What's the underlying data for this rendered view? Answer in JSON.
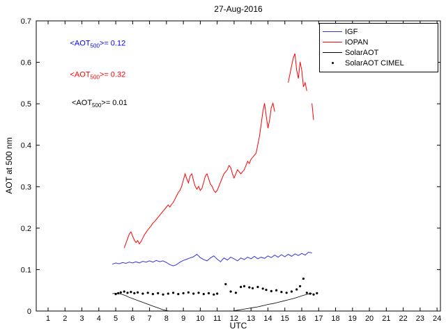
{
  "chart_data": {
    "type": "line",
    "title": "27-Aug-2016",
    "xlabel": "UTC",
    "ylabel": "AOT at 500 nm",
    "xlim": [
      0.3,
      24.2
    ],
    "ylim": [
      0,
      0.7
    ],
    "grid": false,
    "legend_position": "top-right",
    "xticks": [
      1,
      2,
      3,
      4,
      5,
      6,
      7,
      8,
      9,
      10,
      11,
      12,
      13,
      14,
      15,
      16,
      17,
      18,
      19,
      20,
      21,
      22,
      23,
      24
    ],
    "yticks": [
      0,
      0.1,
      0.2,
      0.3,
      0.4,
      0.5,
      0.6,
      0.7
    ],
    "ytick_labels": [
      "0",
      "0.1",
      "0.2",
      "0.3",
      "0.4",
      "0.5",
      "0.6",
      "0.7"
    ],
    "series": [
      {
        "name": "IGF",
        "type": "line",
        "color": "#3333dd",
        "width": 1,
        "segments": [
          [
            [
              4.8,
              0.113
            ],
            [
              5,
              0.116
            ],
            [
              5.2,
              0.114
            ],
            [
              5.4,
              0.117
            ],
            [
              5.6,
              0.115
            ],
            [
              5.8,
              0.118
            ],
            [
              6,
              0.116
            ],
            [
              6.2,
              0.119
            ],
            [
              6.4,
              0.116
            ],
            [
              6.6,
              0.12
            ],
            [
              6.8,
              0.118
            ],
            [
              7,
              0.121
            ],
            [
              7.2,
              0.118
            ],
            [
              7.4,
              0.122
            ],
            [
              7.6,
              0.119
            ],
            [
              7.8,
              0.121
            ],
            [
              8,
              0.117
            ],
            [
              8.2,
              0.112
            ],
            [
              8.4,
              0.109
            ],
            [
              8.6,
              0.112
            ],
            [
              8.8,
              0.118
            ],
            [
              9,
              0.122
            ],
            [
              9.2,
              0.125
            ],
            [
              9.4,
              0.128
            ],
            [
              9.6,
              0.131
            ],
            [
              9.8,
              0.137
            ],
            [
              10,
              0.129
            ],
            [
              10.2,
              0.124
            ],
            [
              10.4,
              0.121
            ],
            [
              10.6,
              0.128
            ],
            [
              10.8,
              0.133
            ],
            [
              11,
              0.125
            ],
            [
              11.2,
              0.119
            ],
            [
              11.4,
              0.128
            ],
            [
              11.6,
              0.123
            ],
            [
              11.8,
              0.13
            ],
            [
              12,
              0.126
            ],
            [
              12.2,
              0.121
            ],
            [
              12.4,
              0.128
            ],
            [
              12.6,
              0.124
            ],
            [
              12.8,
              0.13
            ],
            [
              13,
              0.126
            ],
            [
              13.2,
              0.132
            ],
            [
              13.4,
              0.126
            ],
            [
              13.6,
              0.13
            ],
            [
              13.8,
              0.127
            ],
            [
              14,
              0.133
            ],
            [
              14.2,
              0.129
            ],
            [
              14.4,
              0.135
            ],
            [
              14.6,
              0.13
            ],
            [
              14.8,
              0.136
            ],
            [
              15,
              0.131
            ],
            [
              15.2,
              0.137
            ],
            [
              15.4,
              0.132
            ],
            [
              15.6,
              0.138
            ],
            [
              15.8,
              0.134
            ],
            [
              16,
              0.139
            ],
            [
              16.2,
              0.135
            ],
            [
              16.4,
              0.142
            ],
            [
              16.6,
              0.14
            ]
          ]
        ]
      },
      {
        "name": "IOPAN",
        "type": "line",
        "color": "#ff0000",
        "width": 1,
        "segments": [
          [
            [
              5.5,
              0.152
            ],
            [
              5.6,
              0.163
            ],
            [
              5.7,
              0.174
            ],
            [
              5.8,
              0.186
            ],
            [
              5.9,
              0.191
            ],
            [
              6,
              0.181
            ],
            [
              6.1,
              0.171
            ],
            [
              6.2,
              0.165
            ],
            [
              6.3,
              0.17
            ],
            [
              6.4,
              0.162
            ],
            [
              6.5,
              0.168
            ],
            [
              6.6,
              0.176
            ],
            [
              6.7,
              0.184
            ],
            [
              6.8,
              0.19
            ],
            [
              6.9,
              0.196
            ],
            [
              7,
              0.201
            ],
            [
              7.1,
              0.206
            ],
            [
              7.2,
              0.212
            ],
            [
              7.3,
              0.216
            ],
            [
              7.4,
              0.221
            ],
            [
              7.5,
              0.226
            ],
            [
              7.6,
              0.231
            ],
            [
              7.7,
              0.236
            ],
            [
              7.8,
              0.241
            ],
            [
              7.9,
              0.246
            ],
            [
              8,
              0.251
            ],
            [
              8.1,
              0.256
            ],
            [
              8.2,
              0.251
            ],
            [
              8.3,
              0.257
            ],
            [
              8.4,
              0.262
            ],
            [
              8.5,
              0.27
            ],
            [
              8.6,
              0.278
            ],
            [
              8.7,
              0.286
            ],
            [
              8.8,
              0.291
            ],
            [
              8.9,
              0.301
            ],
            [
              9,
              0.316
            ],
            [
              9.1,
              0.331
            ],
            [
              9.2,
              0.319
            ],
            [
              9.3,
              0.309
            ],
            [
              9.4,
              0.326
            ],
            [
              9.5,
              0.331
            ],
            [
              9.6,
              0.314
            ],
            [
              9.7,
              0.301
            ],
            [
              9.8,
              0.294
            ],
            [
              9.9,
              0.301
            ],
            [
              10,
              0.291
            ],
            [
              10.1,
              0.296
            ],
            [
              10.2,
              0.311
            ],
            [
              10.3,
              0.326
            ],
            [
              10.4,
              0.331
            ],
            [
              10.5,
              0.319
            ],
            [
              10.6,
              0.306
            ],
            [
              10.7,
              0.301
            ],
            [
              10.8,
              0.291
            ],
            [
              10.9,
              0.286
            ],
            [
              11,
              0.291
            ],
            [
              11.1,
              0.301
            ],
            [
              11.2,
              0.311
            ],
            [
              11.3,
              0.321
            ],
            [
              11.4,
              0.331
            ],
            [
              11.5,
              0.336
            ],
            [
              11.6,
              0.341
            ],
            [
              11.7,
              0.351
            ],
            [
              11.8,
              0.346
            ],
            [
              11.9,
              0.331
            ],
            [
              12,
              0.321
            ],
            [
              12.1,
              0.331
            ],
            [
              12.2,
              0.341
            ],
            [
              12.3,
              0.336
            ],
            [
              12.4,
              0.331
            ],
            [
              12.5,
              0.336
            ],
            [
              12.6,
              0.341
            ],
            [
              12.7,
              0.351
            ],
            [
              12.8,
              0.361
            ],
            [
              12.9,
              0.356
            ],
            [
              13,
              0.366
            ],
            [
              13.1,
              0.371
            ],
            [
              13.2,
              0.376
            ],
            [
              13.3,
              0.381
            ],
            [
              13.4,
              0.401
            ],
            [
              13.5,
              0.421
            ],
            [
              13.6,
              0.451
            ],
            [
              13.7,
              0.481
            ],
            [
              13.8,
              0.501
            ],
            [
              13.9,
              0.471
            ],
            [
              14,
              0.441
            ],
            [
              14.1,
              0.461
            ],
            [
              14.2,
              0.491
            ],
            [
              14.3,
              0.501
            ],
            [
              14.4,
              0.481
            ]
          ],
          [
            [
              15.2,
              0.551
            ],
            [
              15.3,
              0.571
            ],
            [
              15.4,
              0.591
            ],
            [
              15.5,
              0.611
            ],
            [
              15.6,
              0.621
            ],
            [
              15.7,
              0.581
            ],
            [
              15.8,
              0.561
            ],
            [
              15.9,
              0.601
            ],
            [
              16,
              0.581
            ],
            [
              16.1,
              0.541
            ],
            [
              16.2,
              0.551
            ],
            [
              16.3,
              0.531
            ]
          ],
          [
            [
              16.6,
              0.501
            ],
            [
              16.7,
              0.461
            ]
          ]
        ]
      },
      {
        "name": "SolarAOT",
        "type": "line",
        "color": "#000000",
        "width": 0.8,
        "segments": [
          [
            [
              4.8,
              0.042
            ],
            [
              5,
              0.043
            ],
            [
              5.2,
              0.042
            ],
            [
              5.4,
              0.04
            ],
            [
              5.6,
              0.037
            ],
            [
              5.8,
              0.033
            ],
            [
              6,
              0.03
            ],
            [
              6.2,
              0.027
            ],
            [
              6.4,
              0.024
            ],
            [
              6.6,
              0.021
            ],
            [
              6.8,
              0.018
            ],
            [
              7,
              0.015
            ],
            [
              7.2,
              0.012
            ],
            [
              7.4,
              0.009
            ],
            [
              7.6,
              0.006
            ],
            [
              7.8,
              0.003
            ],
            [
              8,
              0.001
            ],
            [
              8.2,
              0
            ]
          ],
          [
            [
              11.9,
              0
            ],
            [
              12.2,
              0.002
            ],
            [
              12.5,
              0.004
            ],
            [
              12.8,
              0.006
            ],
            [
              13.1,
              0.008
            ],
            [
              13.4,
              0.01
            ],
            [
              13.7,
              0.013
            ],
            [
              14,
              0.016
            ],
            [
              14.3,
              0.018
            ],
            [
              14.6,
              0.021
            ],
            [
              14.9,
              0.024
            ],
            [
              15.2,
              0.027
            ],
            [
              15.5,
              0.03
            ],
            [
              15.8,
              0.034
            ],
            [
              16.1,
              0.038
            ],
            [
              16.4,
              0.041
            ],
            [
              16.6,
              0.043
            ]
          ]
        ]
      },
      {
        "name": "SolarAOT CIMEL",
        "type": "scatter",
        "color": "#000000",
        "points": [
          [
            5,
            0.041
          ],
          [
            5.15,
            0.043
          ],
          [
            5.3,
            0.045
          ],
          [
            5.5,
            0.047
          ],
          [
            5.7,
            0.044
          ],
          [
            5.9,
            0.046
          ],
          [
            6.1,
            0.043
          ],
          [
            6.3,
            0.045
          ],
          [
            6.6,
            0.042
          ],
          [
            6.9,
            0.044
          ],
          [
            7.2,
            0.041
          ],
          [
            7.5,
            0.043
          ],
          [
            7.8,
            0.04
          ],
          [
            8.1,
            0.042
          ],
          [
            8.4,
            0.044
          ],
          [
            8.7,
            0.041
          ],
          [
            9,
            0.043
          ],
          [
            9.3,
            0.045
          ],
          [
            9.6,
            0.042
          ],
          [
            9.9,
            0.044
          ],
          [
            10.2,
            0.041
          ],
          [
            10.5,
            0.043
          ],
          [
            10.8,
            0.04
          ],
          [
            11,
            0.042
          ],
          [
            11.5,
            0.065
          ],
          [
            11.8,
            0.047
          ],
          [
            12.1,
            0.044
          ],
          [
            12.4,
            0.058
          ],
          [
            12.6,
            0.06
          ],
          [
            12.9,
            0.057
          ],
          [
            13.1,
            0.055
          ],
          [
            13.4,
            0.058
          ],
          [
            13.7,
            0.054
          ],
          [
            13.9,
            0.051
          ],
          [
            14.2,
            0.048
          ],
          [
            14.5,
            0.05
          ],
          [
            14.8,
            0.046
          ],
          [
            15.1,
            0.044
          ],
          [
            15.4,
            0.047
          ],
          [
            15.7,
            0.052
          ],
          [
            15.9,
            0.06
          ],
          [
            16.1,
            0.078
          ],
          [
            16.3,
            0.044
          ],
          [
            16.5,
            0.042
          ],
          [
            16.7,
            0.04
          ],
          [
            16.9,
            0.043
          ]
        ]
      }
    ],
    "annotations": [
      {
        "x": 2.3,
        "y": 0.64,
        "color": "#0000ff",
        "pre": "<AOT",
        "sub": "500",
        "post": ">= 0.12"
      },
      {
        "x": 2.3,
        "y": 0.565,
        "color": "#ff0000",
        "pre": "<AOT",
        "sub": "500",
        "post": ">= 0.32"
      },
      {
        "x": 2.4,
        "y": 0.497,
        "color": "#000000",
        "pre": "<AOT",
        "sub": "500",
        "post": ">= 0.01"
      }
    ]
  },
  "legend": {
    "items": [
      {
        "label": "IGF",
        "color": "#3333dd",
        "marker": "line"
      },
      {
        "label": "IOPAN",
        "color": "#ff0000",
        "marker": "line"
      },
      {
        "label": "SolarAOT",
        "color": "#000000",
        "marker": "line"
      },
      {
        "label": "SolarAOT CIMEL",
        "color": "#000000",
        "marker": "dot"
      }
    ]
  }
}
